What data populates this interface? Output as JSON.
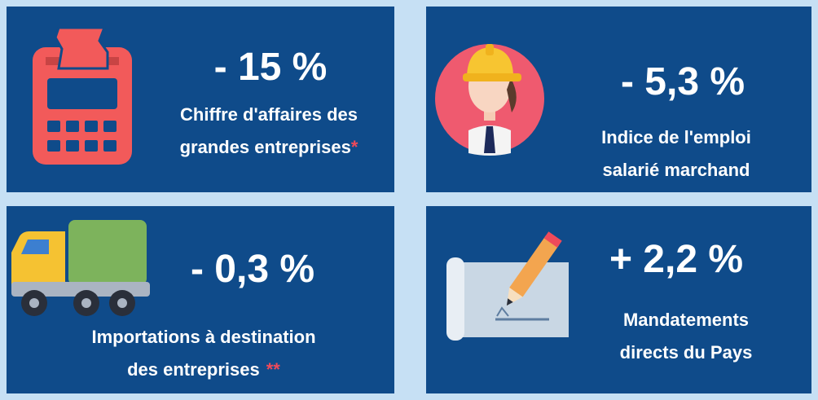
{
  "panels": [
    {
      "value": "- 15 %",
      "label": [
        "Chiffre d'affaires des",
        "grandes entreprises"
      ],
      "note": "*"
    },
    {
      "value": "- 5,3 %",
      "label": [
        "Indice de l'emploi",
        "salarié marchand"
      ]
    },
    {
      "value": "- 0,3 %",
      "label": [
        "Importations à destination",
        "des entreprises"
      ],
      "note": "**"
    },
    {
      "value": "+ 2,2 %",
      "label": [
        "Mandatements",
        "directs du Pays"
      ]
    }
  ]
}
